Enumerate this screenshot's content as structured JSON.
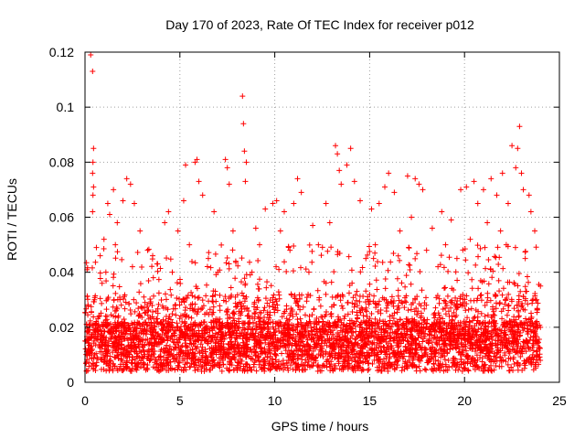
{
  "chart_data": {
    "type": "scatter",
    "title": "Day 170 of 2023, Rate Of TEC Index for receiver p012",
    "xlabel": "GPS time / hours",
    "ylabel": "ROTI / TECUs",
    "xlim": [
      0,
      25
    ],
    "ylim": [
      0,
      0.12
    ],
    "xticks": [
      0,
      5,
      10,
      15,
      20,
      25
    ],
    "xtick_labels": [
      "0",
      "5",
      "10",
      "15",
      "20",
      "25"
    ],
    "yticks": [
      0,
      0.02,
      0.04,
      0.06,
      0.08,
      0.1,
      0.12
    ],
    "ytick_labels": [
      "0",
      "0.02",
      "0.04",
      "0.06",
      "0.08",
      "0.1",
      "0.12"
    ],
    "grid": true,
    "marker": "+",
    "series": [
      {
        "name": "ROTI",
        "color": "#ff0000",
        "points": [
          [
            0.3,
            0.119
          ],
          [
            0.4,
            0.113
          ],
          [
            0.45,
            0.085
          ],
          [
            0.42,
            0.08
          ],
          [
            0.4,
            0.076
          ],
          [
            0.45,
            0.071
          ],
          [
            0.42,
            0.068
          ],
          [
            0.4,
            0.062
          ],
          [
            0.6,
            0.049
          ],
          [
            0.8,
            0.046
          ],
          [
            1.0,
            0.052
          ],
          [
            1.2,
            0.065
          ],
          [
            1.3,
            0.061
          ],
          [
            1.5,
            0.07
          ],
          [
            1.7,
            0.058
          ],
          [
            2.0,
            0.066
          ],
          [
            2.2,
            0.074
          ],
          [
            2.4,
            0.072
          ],
          [
            2.6,
            0.065
          ],
          [
            2.9,
            0.055
          ],
          [
            3.3,
            0.048
          ],
          [
            3.8,
            0.043
          ],
          [
            4.2,
            0.058
          ],
          [
            4.4,
            0.062
          ],
          [
            4.9,
            0.055
          ],
          [
            5.2,
            0.066
          ],
          [
            5.3,
            0.079
          ],
          [
            5.8,
            0.08
          ],
          [
            5.9,
            0.081
          ],
          [
            6.0,
            0.073
          ],
          [
            6.2,
            0.068
          ],
          [
            6.8,
            0.062
          ],
          [
            7.4,
            0.081
          ],
          [
            7.5,
            0.078
          ],
          [
            7.6,
            0.072
          ],
          [
            8.3,
            0.104
          ],
          [
            8.35,
            0.094
          ],
          [
            8.4,
            0.084
          ],
          [
            8.5,
            0.08
          ],
          [
            8.45,
            0.073
          ],
          [
            9.0,
            0.056
          ],
          [
            9.5,
            0.063
          ],
          [
            9.9,
            0.065
          ],
          [
            10.1,
            0.066
          ],
          [
            10.5,
            0.062
          ],
          [
            11.0,
            0.065
          ],
          [
            11.2,
            0.074
          ],
          [
            11.4,
            0.069
          ],
          [
            12.0,
            0.057
          ],
          [
            12.7,
            0.065
          ],
          [
            13.2,
            0.086
          ],
          [
            13.3,
            0.083
          ],
          [
            13.4,
            0.077
          ],
          [
            13.5,
            0.072
          ],
          [
            13.8,
            0.079
          ],
          [
            14.0,
            0.085
          ],
          [
            14.2,
            0.073
          ],
          [
            14.5,
            0.066
          ],
          [
            15.1,
            0.063
          ],
          [
            15.5,
            0.065
          ],
          [
            15.8,
            0.071
          ],
          [
            16.0,
            0.076
          ],
          [
            16.3,
            0.069
          ],
          [
            17.0,
            0.075
          ],
          [
            17.4,
            0.074
          ],
          [
            17.6,
            0.072
          ],
          [
            17.8,
            0.07
          ],
          [
            18.3,
            0.056
          ],
          [
            18.8,
            0.062
          ],
          [
            19.3,
            0.059
          ],
          [
            19.8,
            0.07
          ],
          [
            20.1,
            0.071
          ],
          [
            20.5,
            0.073
          ],
          [
            20.7,
            0.065
          ],
          [
            21.0,
            0.07
          ],
          [
            21.4,
            0.074
          ],
          [
            21.7,
            0.068
          ],
          [
            22.0,
            0.076
          ],
          [
            22.3,
            0.065
          ],
          [
            22.5,
            0.086
          ],
          [
            22.7,
            0.078
          ],
          [
            22.8,
            0.085
          ],
          [
            22.9,
            0.093
          ],
          [
            23.0,
            0.076
          ],
          [
            23.1,
            0.07
          ],
          [
            23.4,
            0.068
          ],
          [
            23.5,
            0.062
          ],
          [
            24.0,
            0.035
          ],
          [
            23.7,
            0.055
          ],
          [
            24.0,
            0.02
          ],
          [
            0.2,
            0.018
          ],
          [
            0.5,
            0.03
          ],
          [
            0.9,
            0.036
          ],
          [
            1.1,
            0.04
          ],
          [
            1.6,
            0.05
          ],
          [
            2.5,
            0.042
          ],
          [
            3.1,
            0.031
          ],
          [
            3.6,
            0.038
          ],
          [
            4.6,
            0.04
          ],
          [
            5.5,
            0.05
          ],
          [
            6.5,
            0.045
          ],
          [
            7.0,
            0.04
          ],
          [
            7.8,
            0.055
          ],
          [
            8.8,
            0.04
          ],
          [
            9.2,
            0.05
          ],
          [
            10.3,
            0.055
          ],
          [
            10.8,
            0.048
          ],
          [
            11.8,
            0.04
          ],
          [
            12.3,
            0.05
          ],
          [
            12.9,
            0.058
          ],
          [
            14.8,
            0.045
          ],
          [
            15.3,
            0.05
          ],
          [
            16.6,
            0.055
          ],
          [
            17.2,
            0.06
          ],
          [
            18.0,
            0.048
          ],
          [
            18.6,
            0.042
          ],
          [
            19.0,
            0.05
          ],
          [
            19.6,
            0.045
          ],
          [
            20.3,
            0.052
          ],
          [
            21.2,
            0.058
          ],
          [
            21.9,
            0.055
          ],
          [
            22.2,
            0.05
          ],
          [
            23.2,
            0.045
          ],
          [
            23.8,
            0.03
          ]
        ]
      }
    ]
  }
}
